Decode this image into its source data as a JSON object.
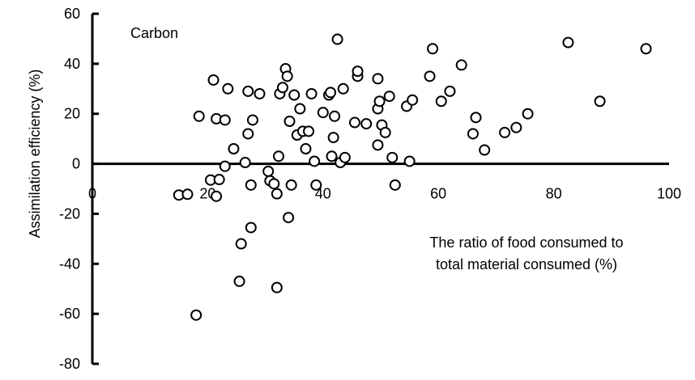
{
  "chart_data": {
    "type": "scatter",
    "title": "",
    "xlabel": "",
    "ylabel": "Assimilation efficiency (%)",
    "annotations": {
      "panel_label": "Carbon",
      "x_caption_line1": "The ratio of food consumed to",
      "x_caption_line2": "total material consumed (%)"
    },
    "xlim": [
      0,
      100
    ],
    "ylim": [
      -80,
      60
    ],
    "x_ticks": [
      {
        "value": 0,
        "label": "0"
      },
      {
        "value": 20,
        "label": "20"
      },
      {
        "value": 40,
        "label": "40"
      },
      {
        "value": 60,
        "label": "60"
      },
      {
        "value": 80,
        "label": "80"
      },
      {
        "value": 100,
        "label": "100"
      }
    ],
    "y_ticks": [
      {
        "value": 60,
        "label": "60"
      },
      {
        "value": 40,
        "label": "40"
      },
      {
        "value": 20,
        "label": "20"
      },
      {
        "value": 0,
        "label": "0"
      },
      {
        "value": -20,
        "label": "-20"
      },
      {
        "value": -40,
        "label": "-40"
      },
      {
        "value": -60,
        "label": "-60"
      },
      {
        "value": -80,
        "label": "-80"
      }
    ],
    "grid": false,
    "legend": "none",
    "marker": {
      "shape": "open-circle",
      "stroke": "#000000",
      "fill": "#ffffff"
    },
    "points": [
      [
        15.0,
        -12.5
      ],
      [
        16.5,
        -12.2
      ],
      [
        18.0,
        -60.5
      ],
      [
        18.5,
        19.0
      ],
      [
        20.5,
        -6.5
      ],
      [
        21.0,
        33.5
      ],
      [
        21.5,
        18.0
      ],
      [
        21.5,
        -13.0
      ],
      [
        22.0,
        -6.3
      ],
      [
        23.0,
        -1.0
      ],
      [
        23.0,
        17.5
      ],
      [
        23.5,
        30.0
      ],
      [
        24.5,
        6.0
      ],
      [
        25.5,
        -47.0
      ],
      [
        25.8,
        -32.0
      ],
      [
        26.5,
        0.5
      ],
      [
        27.0,
        12.0
      ],
      [
        27.0,
        29.0
      ],
      [
        27.5,
        -8.5
      ],
      [
        27.5,
        -25.5
      ],
      [
        27.8,
        17.5
      ],
      [
        29.0,
        28.0
      ],
      [
        30.5,
        -3.0
      ],
      [
        30.8,
        -6.8
      ],
      [
        31.5,
        -8.0
      ],
      [
        32.0,
        -49.5
      ],
      [
        32.0,
        -12.0
      ],
      [
        32.3,
        3.0
      ],
      [
        32.5,
        28.0
      ],
      [
        33.0,
        30.5
      ],
      [
        33.5,
        38.0
      ],
      [
        33.8,
        35.0
      ],
      [
        34.0,
        -21.5
      ],
      [
        34.2,
        17.0
      ],
      [
        34.5,
        -8.5
      ],
      [
        35.0,
        27.5
      ],
      [
        35.5,
        11.5
      ],
      [
        36.0,
        22.0
      ],
      [
        36.5,
        13.0
      ],
      [
        37.0,
        6.0
      ],
      [
        37.5,
        13.0
      ],
      [
        38.0,
        28.0
      ],
      [
        38.5,
        1.0
      ],
      [
        38.8,
        -8.5
      ],
      [
        40.0,
        20.5
      ],
      [
        41.0,
        27.5
      ],
      [
        41.3,
        28.5
      ],
      [
        41.5,
        3.0
      ],
      [
        41.8,
        10.5
      ],
      [
        42.0,
        19.0
      ],
      [
        42.5,
        49.8
      ],
      [
        43.0,
        0.5
      ],
      [
        43.5,
        30.0
      ],
      [
        43.8,
        2.5
      ],
      [
        45.5,
        16.5
      ],
      [
        46.0,
        35.0
      ],
      [
        46.0,
        37.0
      ],
      [
        47.5,
        16.0
      ],
      [
        49.5,
        7.5
      ],
      [
        49.5,
        22.0
      ],
      [
        49.5,
        34.0
      ],
      [
        49.8,
        25.0
      ],
      [
        50.2,
        15.5
      ],
      [
        50.8,
        12.5
      ],
      [
        51.5,
        27.0
      ],
      [
        52.0,
        2.5
      ],
      [
        52.5,
        -8.5
      ],
      [
        54.5,
        23.0
      ],
      [
        55.0,
        1.0
      ],
      [
        55.5,
        25.5
      ],
      [
        58.5,
        35.0
      ],
      [
        59.0,
        46.0
      ],
      [
        60.5,
        25.0
      ],
      [
        62.0,
        29.0
      ],
      [
        64.0,
        39.5
      ],
      [
        66.0,
        12.0
      ],
      [
        66.5,
        18.5
      ],
      [
        68.0,
        5.5
      ],
      [
        71.5,
        12.5
      ],
      [
        73.5,
        14.5
      ],
      [
        75.5,
        20.0
      ],
      [
        82.5,
        48.5
      ],
      [
        88.0,
        25.0
      ],
      [
        96.0,
        46.0
      ]
    ]
  }
}
